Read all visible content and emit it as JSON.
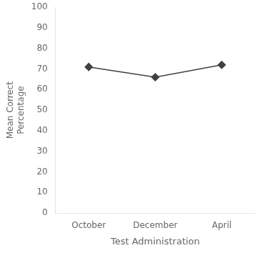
{
  "chart_data": {
    "type": "line",
    "categories": [
      "October",
      "December",
      "April"
    ],
    "values": [
      71,
      66,
      72
    ],
    "color": "#404040",
    "marker": "diamond",
    "xlabel": "Test Administration",
    "ylabel": "Mean Correct\nPercentage",
    "ylim": [
      0,
      100
    ],
    "yticks": [
      0,
      10,
      20,
      30,
      40,
      50,
      60,
      70,
      80,
      90,
      100
    ],
    "grid": false
  }
}
